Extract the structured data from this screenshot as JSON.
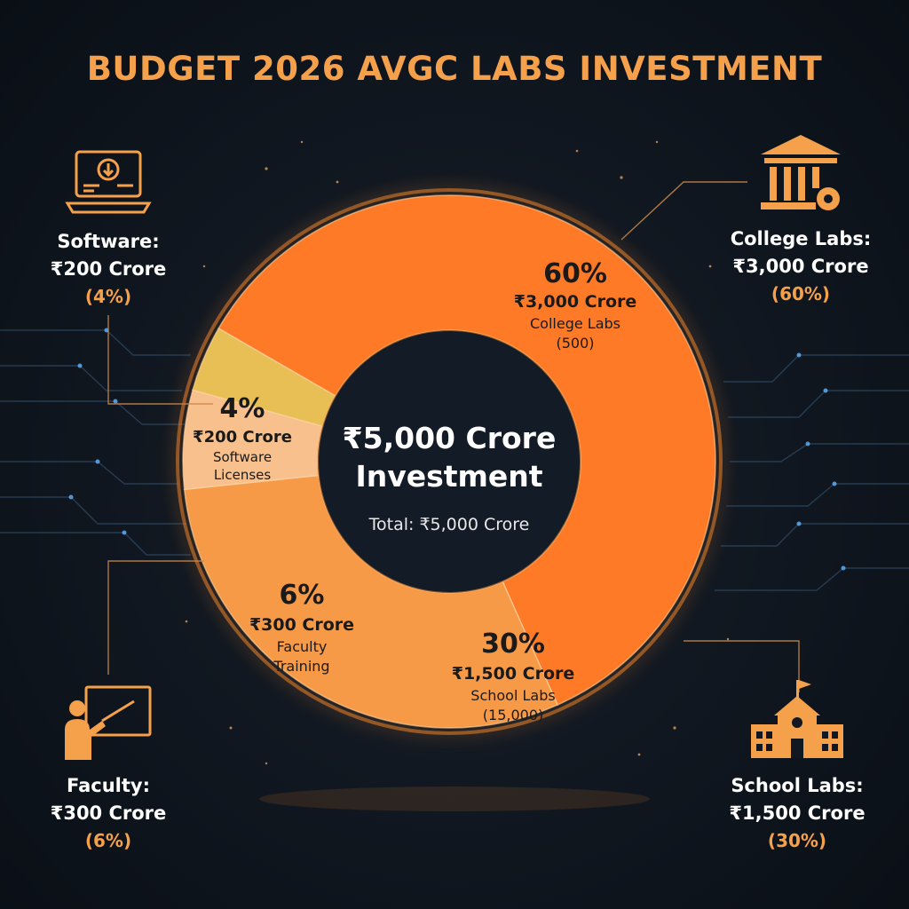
{
  "title": "BUDGET 2026 AVGC LABS INVESTMENT",
  "colors": {
    "background": "#111821",
    "accent": "#f5a04a",
    "ring_glow": "#ff8a2a",
    "college": "#ff7a26",
    "school": "#f79a48",
    "faculty": "#f7c08c",
    "software": "#e8bf55"
  },
  "chart_data": {
    "type": "pie",
    "style": "donut",
    "center": {
      "line1": "₹5,000 Crore",
      "line2": "Investment",
      "total": "Total: ₹5,000 Crore"
    },
    "slices": [
      {
        "key": "college",
        "value": 60,
        "pct": "60%",
        "amount": "₹3,000 Crore",
        "label1": "College Labs",
        "label2": "(500)"
      },
      {
        "key": "school",
        "value": 30,
        "pct": "30%",
        "amount": "₹1,500 Crore",
        "label1": "School Labs",
        "label2": "(15,000)"
      },
      {
        "key": "faculty",
        "value": 6,
        "pct": "6%",
        "amount": "₹300 Crore",
        "label1": "Faculty",
        "label2": "Training"
      },
      {
        "key": "software",
        "value": 4,
        "pct": "4%",
        "amount": "₹200 Crore",
        "label1": "Software",
        "label2": "Licenses"
      }
    ]
  },
  "callouts": {
    "software": {
      "icon": "laptop-download-icon",
      "name": "Software:",
      "amount": "₹200 Crore",
      "pct": "(4%)"
    },
    "college": {
      "icon": "university-gear-icon",
      "name": "College Labs:",
      "amount": "₹3,000 Crore",
      "pct": "(60%)"
    },
    "faculty": {
      "icon": "teacher-board-icon",
      "name": "Faculty:",
      "amount": "₹300 Crore",
      "pct": "(6%)"
    },
    "school": {
      "icon": "school-building-icon",
      "name": "School Labs:",
      "amount": "₹1,500 Crore",
      "pct": "(30%)"
    }
  }
}
